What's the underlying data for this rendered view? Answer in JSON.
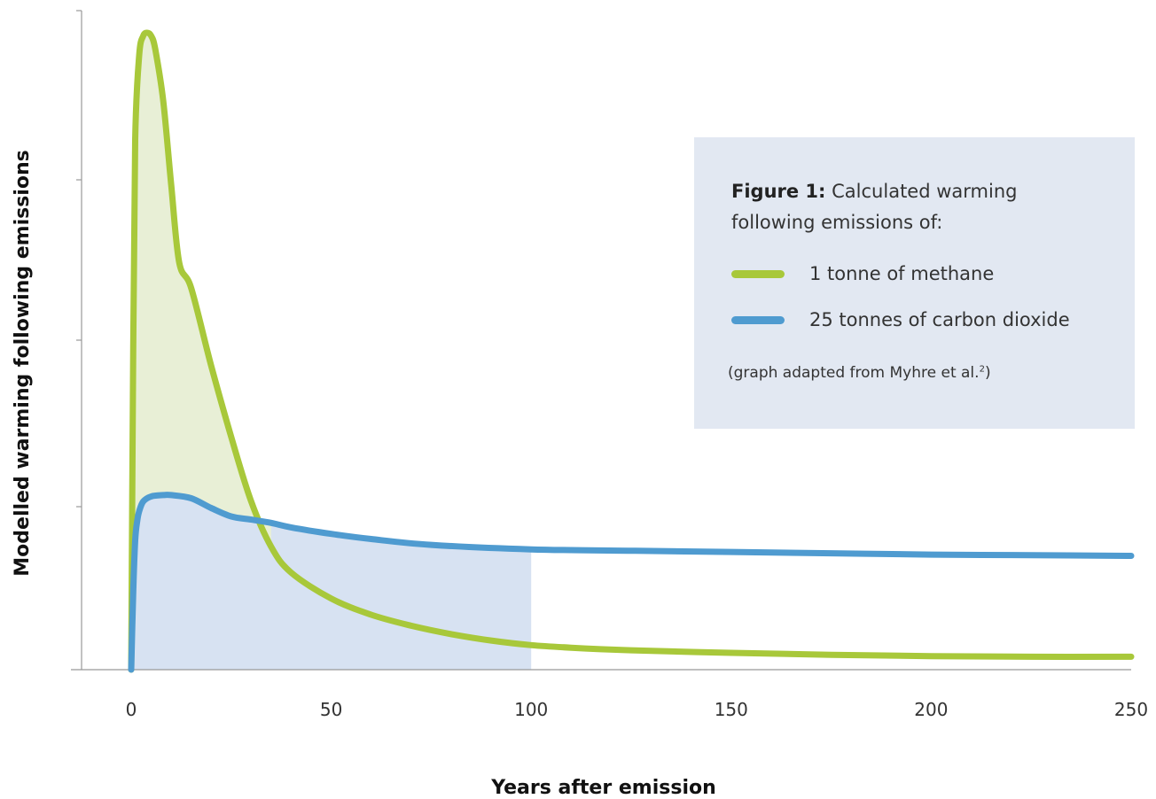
{
  "chart_data": {
    "type": "line",
    "xlabel": "Years after emission",
    "ylabel": "Modelled warming following emissions",
    "xlim": [
      0,
      250
    ],
    "ylim": [
      0,
      1
    ],
    "x_ticks": [
      "0",
      "50",
      "100",
      "150",
      "200",
      "250"
    ],
    "y_tick_labels_shown": false,
    "grid": false,
    "legend": {
      "placement": "top-right",
      "title_bold": "Figure 1:",
      "title_rest": "Calculated warming following emissions of:",
      "note": "(graph adapted from Myhre et al.",
      "note_sup": "2",
      "note_end": ")"
    },
    "shaded_region": {
      "x_range": [
        0,
        100
      ],
      "color": "#d7e2f2"
    },
    "series": [
      {
        "name": "1 tonne of methane",
        "color": "#a8c83a",
        "fill": "#e8efd6",
        "x": [
          0,
          0.5,
          1,
          2,
          3,
          4,
          5,
          6,
          8,
          10,
          12,
          15,
          20,
          25,
          30,
          35,
          40,
          50,
          60,
          70,
          80,
          90,
          100,
          110,
          125,
          150,
          175,
          200,
          225,
          250
        ],
        "y": [
          0.0,
          0.5,
          0.82,
          0.95,
          0.98,
          0.985,
          0.98,
          0.96,
          0.88,
          0.75,
          0.63,
          0.59,
          0.47,
          0.36,
          0.26,
          0.19,
          0.15,
          0.11,
          0.085,
          0.068,
          0.055,
          0.045,
          0.038,
          0.034,
          0.03,
          0.026,
          0.023,
          0.021,
          0.02,
          0.02
        ]
      },
      {
        "name": "25 tonnes of carbon dioxide",
        "color": "#4f9bd0",
        "x": [
          0,
          0.5,
          1,
          1.5,
          2,
          3,
          5,
          8,
          10,
          15,
          20,
          25,
          30,
          35,
          40,
          50,
          60,
          75,
          100,
          125,
          150,
          175,
          200,
          225,
          250
        ],
        "y": [
          0.0,
          0.12,
          0.2,
          0.23,
          0.245,
          0.26,
          0.268,
          0.27,
          0.27,
          0.265,
          0.25,
          0.237,
          0.232,
          0.227,
          0.22,
          0.21,
          0.202,
          0.193,
          0.186,
          0.184,
          0.182,
          0.18,
          0.178,
          0.177,
          0.176
        ]
      }
    ]
  }
}
